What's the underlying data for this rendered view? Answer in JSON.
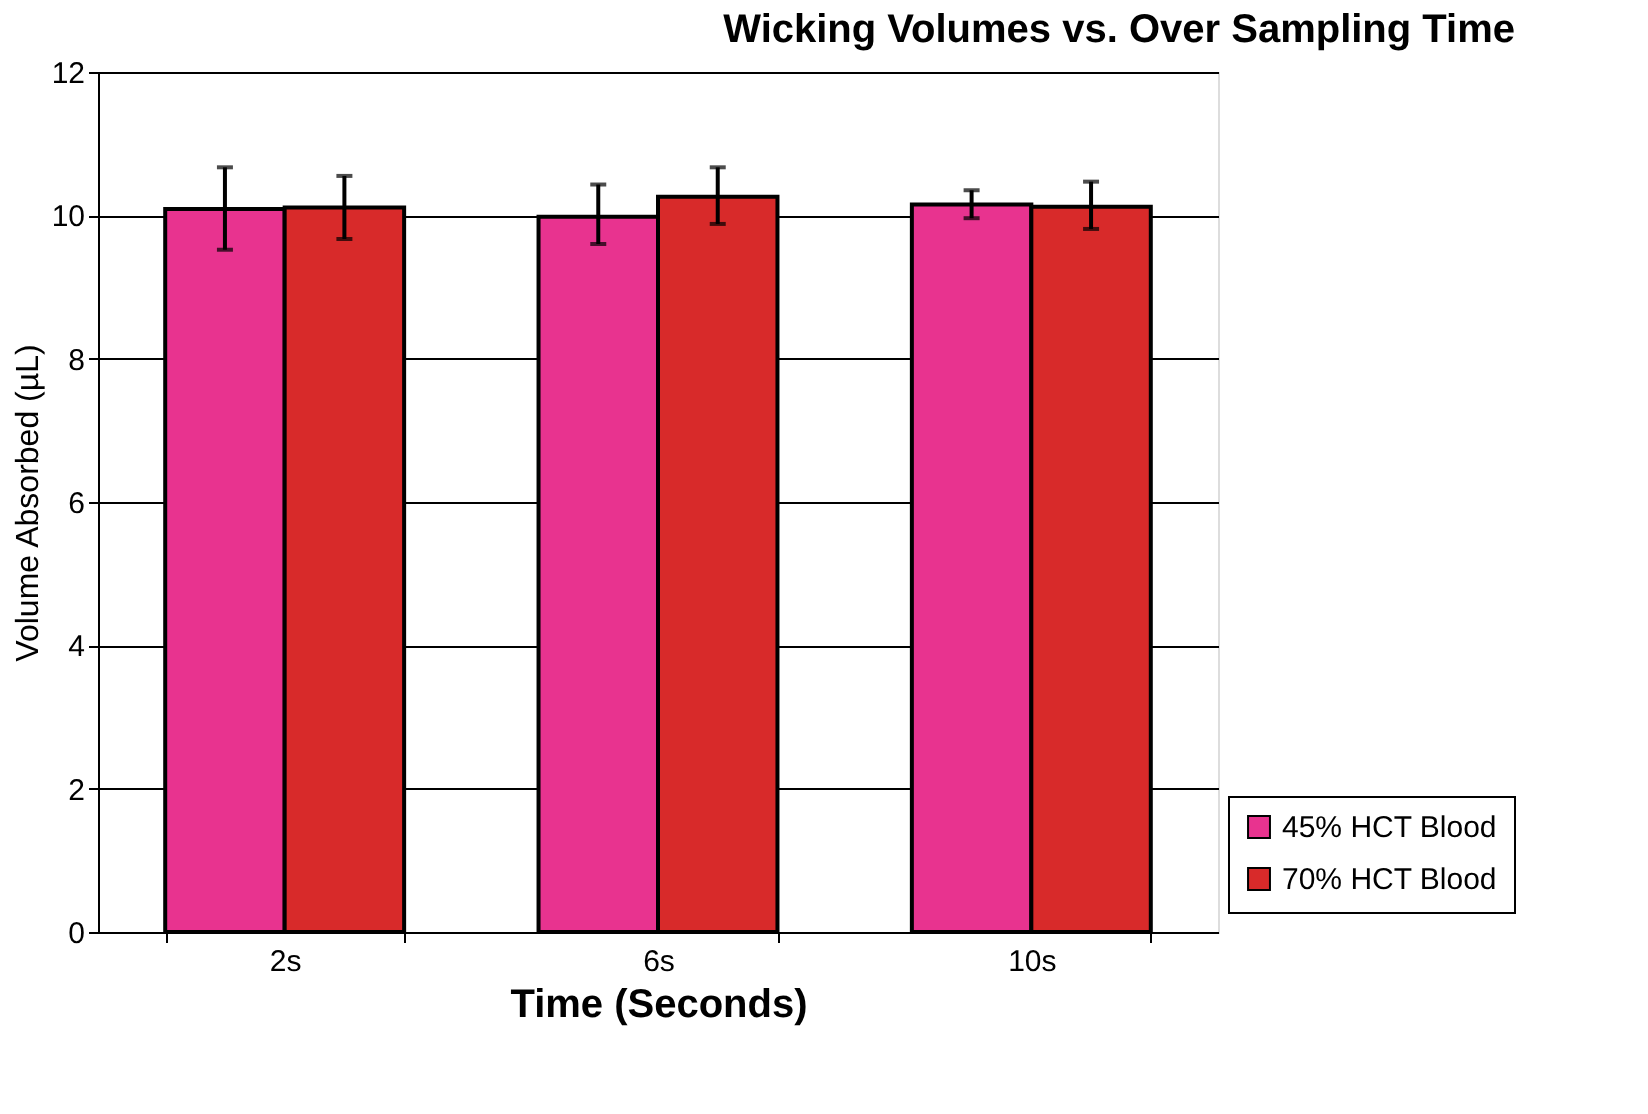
{
  "chart_data": {
    "type": "bar",
    "title": "Wicking Volumes vs. Over Sampling Time",
    "xlabel": "Time (Seconds)",
    "ylabel": "Volume Absorbed (µL)",
    "categories": [
      "2s",
      "6s",
      "10s"
    ],
    "series": [
      {
        "name": "45% HCT Blood",
        "color": "#e8338f",
        "values": [
          10.09,
          9.98,
          10.15
        ],
        "errors": [
          [
            9.52,
            10.67
          ],
          [
            9.6,
            10.43
          ],
          [
            9.96,
            10.35
          ]
        ]
      },
      {
        "name": "70% HCT Blood",
        "color": "#d82a2a",
        "values": [
          10.11,
          10.26,
          10.12
        ],
        "errors": [
          [
            9.67,
            10.55
          ],
          [
            9.88,
            10.67
          ],
          [
            9.81,
            10.47
          ]
        ]
      }
    ],
    "ylim": [
      0,
      12
    ],
    "yticks": [
      0,
      2,
      4,
      6,
      8,
      10,
      12
    ],
    "grid": "y",
    "legend": "bottom right"
  }
}
